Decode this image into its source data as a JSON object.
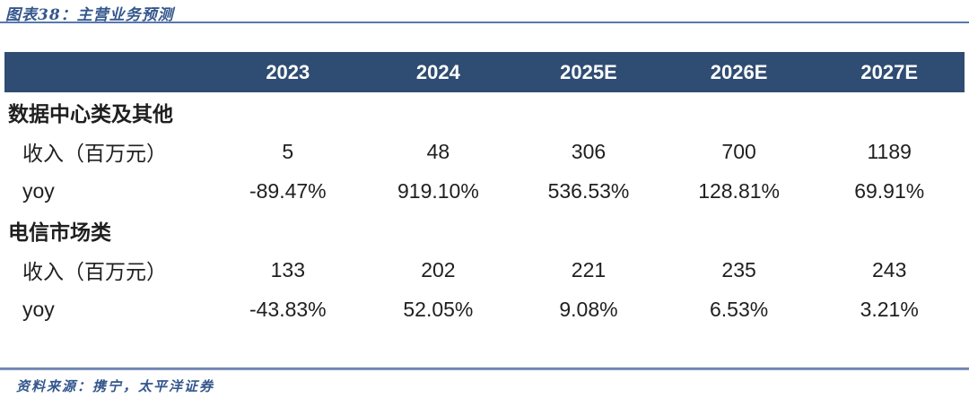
{
  "title": "图表38：主营业务预测",
  "colors": {
    "header_bg": "#2f4d72",
    "header_text": "#ffffff",
    "title_text": "#33568c",
    "rule_top": "#5878ac",
    "rule_bottom": "#7e92bf"
  },
  "table": {
    "columns": [
      "",
      "2023",
      "2024",
      "2025E",
      "2026E",
      "2027E"
    ],
    "rows": [
      {
        "type": "section",
        "label": "数据中心类及其他",
        "values": [
          "",
          "",
          "",
          "",
          ""
        ]
      },
      {
        "type": "data",
        "label": "收入（百万元）",
        "values": [
          "5",
          "48",
          "306",
          "700",
          "1189"
        ]
      },
      {
        "type": "data",
        "label": "yoy",
        "values": [
          "-89.47%",
          "919.10%",
          "536.53%",
          "128.81%",
          "69.91%"
        ]
      },
      {
        "type": "section",
        "label": "电信市场类",
        "values": [
          "",
          "",
          "",
          "",
          ""
        ]
      },
      {
        "type": "data",
        "label": "收入（百万元）",
        "values": [
          "133",
          "202",
          "221",
          "235",
          "243"
        ]
      },
      {
        "type": "data",
        "label": "yoy",
        "values": [
          "-43.83%",
          "52.05%",
          "9.08%",
          "6.53%",
          "3.21%"
        ]
      }
    ]
  },
  "chart_data": {
    "type": "table",
    "title": "图表38：主营业务预测",
    "categories": [
      "2023",
      "2024",
      "2025E",
      "2026E",
      "2027E"
    ],
    "series": [
      {
        "name": "数据中心类及其他 收入（百万元）",
        "values": [
          5,
          48,
          306,
          700,
          1189
        ]
      },
      {
        "name": "数据中心类及其他 yoy",
        "values": [
          "-89.47%",
          "919.10%",
          "536.53%",
          "128.81%",
          "69.91%"
        ]
      },
      {
        "name": "电信市场类 收入（百万元）",
        "values": [
          133,
          202,
          221,
          235,
          243
        ]
      },
      {
        "name": "电信市场类 yoy",
        "values": [
          "-43.83%",
          "52.05%",
          "9.08%",
          "6.53%",
          "3.21%"
        ]
      }
    ]
  },
  "footer": {
    "source": "资料来源：携宁，太平洋证券"
  }
}
